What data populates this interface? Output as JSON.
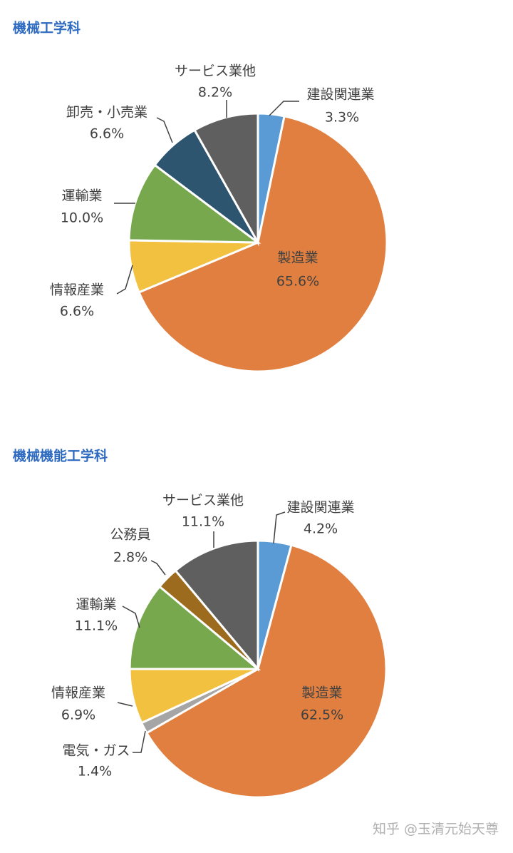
{
  "chart_data": [
    {
      "type": "pie",
      "title": "機械工学科",
      "categories": [
        "建設関連業",
        "製造業",
        "情報産業",
        "運輸業",
        "卸売・小売業",
        "サービス業他"
      ],
      "values": [
        3.3,
        65.6,
        6.6,
        10.0,
        6.6,
        8.2
      ],
      "value_labels": [
        "3.3%",
        "65.6%",
        "6.6%",
        "10.0%",
        "6.6%",
        "8.2%"
      ],
      "colors": [
        "#5b9bd5",
        "#e07f3f",
        "#f2c140",
        "#77a84e",
        "#2e5570",
        "#5f5f5f"
      ]
    },
    {
      "type": "pie",
      "title": "機械機能工学科",
      "categories": [
        "建設関連業",
        "製造業",
        "電気・ガス",
        "情報産業",
        "運輸業",
        "公務員",
        "サービス業他"
      ],
      "values": [
        4.2,
        62.5,
        1.4,
        6.9,
        11.1,
        2.8,
        11.1
      ],
      "value_labels": [
        "4.2%",
        "62.5%",
        "1.4%",
        "6.9%",
        "11.1%",
        "2.8%",
        "11.1%"
      ],
      "colors": [
        "#5b9bd5",
        "#e07f3f",
        "#a5a5a5",
        "#f2c140",
        "#77a84e",
        "#9c6b1e",
        "#5f5f5f"
      ]
    }
  ],
  "watermark": "知乎 @玉清元始天尊"
}
